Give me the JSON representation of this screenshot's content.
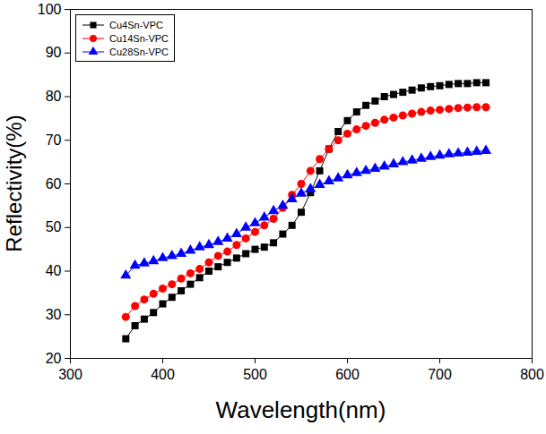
{
  "chart_data": {
    "type": "line",
    "xlabel": "Wavelength(nm)",
    "ylabel": "Reflectivity(%)",
    "x": [
      360,
      370,
      380,
      390,
      400,
      410,
      420,
      430,
      440,
      450,
      460,
      470,
      480,
      490,
      500,
      510,
      520,
      530,
      540,
      550,
      560,
      570,
      580,
      590,
      600,
      610,
      620,
      630,
      640,
      650,
      660,
      670,
      680,
      690,
      700,
      710,
      720,
      730,
      740,
      750
    ],
    "series": [
      {
        "name": "Cu4Sn-VPC",
        "color": "#000000",
        "marker": "square",
        "values": [
          24.5,
          27.5,
          29,
          30.5,
          32.5,
          34,
          35.5,
          37,
          38.5,
          40,
          41,
          42,
          43,
          44,
          45,
          45.5,
          46.5,
          48.5,
          50.5,
          53.5,
          58,
          63,
          68,
          72,
          74.5,
          76.5,
          78,
          79,
          80,
          80.5,
          81,
          81.5,
          82,
          82.3,
          82.5,
          82.8,
          83,
          83,
          83.2,
          83.2
        ]
      },
      {
        "name": "Cu14Sn-VPC",
        "color": "#ff0000",
        "marker": "circle",
        "values": [
          29.5,
          32,
          33.5,
          34.8,
          36,
          37,
          38.3,
          39.5,
          40.5,
          42,
          43.5,
          44.5,
          46,
          47.5,
          49,
          50.5,
          52,
          54.5,
          57.5,
          60,
          63,
          65.7,
          68,
          70,
          71.5,
          72.5,
          73.3,
          74,
          74.7,
          75.2,
          75.7,
          76.1,
          76.5,
          76.8,
          77,
          77.2,
          77.4,
          77.5,
          77.6,
          77.6
        ]
      },
      {
        "name": "Cu28Sn-VPC",
        "color": "#0000ff",
        "marker": "triangle",
        "values": [
          39,
          41.3,
          41.8,
          42.3,
          43,
          43.5,
          44,
          44.7,
          45.5,
          46,
          46.7,
          47.5,
          48.5,
          50,
          51,
          52.3,
          53.8,
          55,
          56.5,
          57.8,
          58.8,
          59.8,
          60.6,
          61.3,
          62,
          62.5,
          63,
          63.5,
          64,
          64.5,
          65,
          65.4,
          65.8,
          66.2,
          66.5,
          66.8,
          67,
          67.2,
          67.4,
          67.6
        ]
      }
    ],
    "xlim": [
      300,
      800
    ],
    "xticks": [
      300,
      400,
      500,
      600,
      700,
      800
    ],
    "ylim": [
      20,
      100
    ],
    "yticks": [
      20,
      30,
      40,
      50,
      60,
      70,
      80,
      90,
      100
    ],
    "legend": "upper left",
    "grid": false
  }
}
